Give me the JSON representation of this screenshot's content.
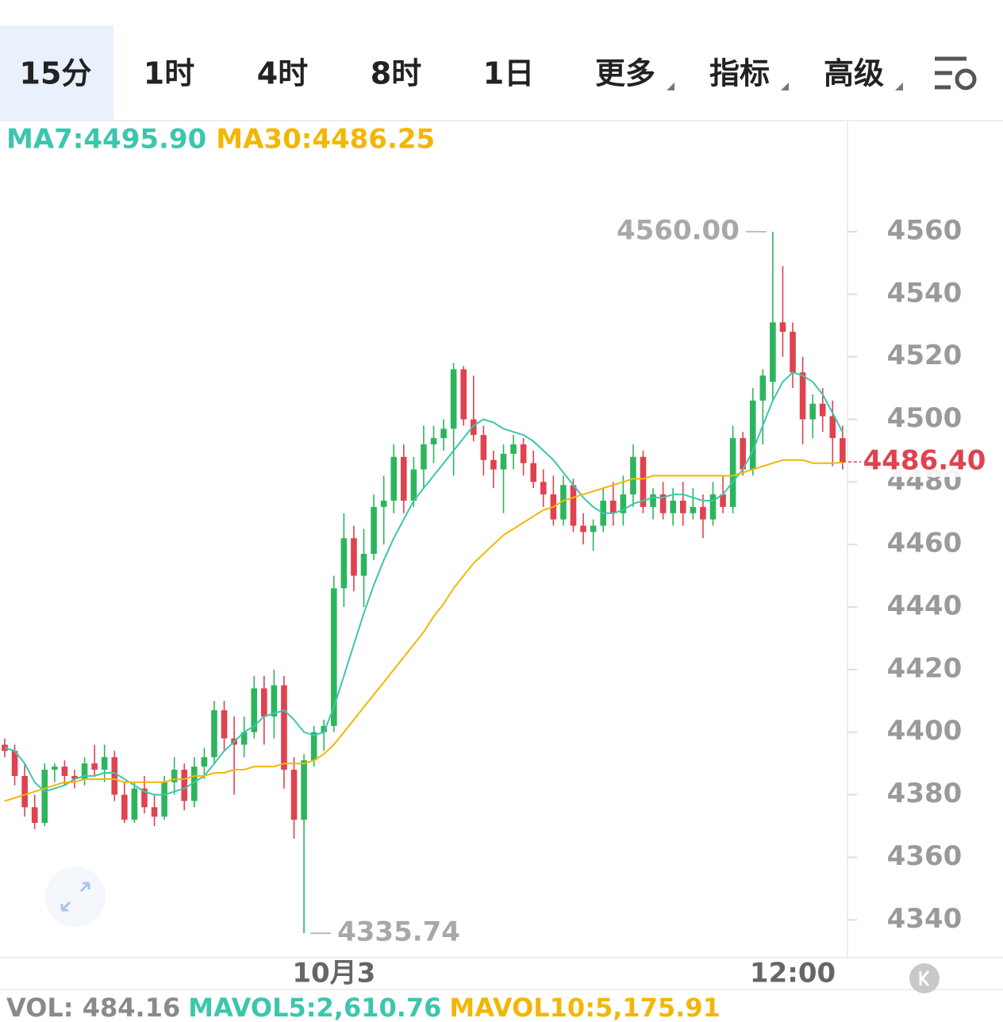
{
  "tabs": [
    "15分",
    "1时",
    "4时",
    "8时",
    "1日",
    "更多",
    "指标",
    "高级"
  ],
  "active_tab": 0,
  "chart_data": {
    "type": "candlestick",
    "categories": [
      null,
      null,
      null,
      null,
      null,
      null,
      null,
      null,
      null,
      null,
      null,
      null,
      null,
      null,
      null,
      null,
      null,
      null,
      null,
      null,
      null,
      null,
      null,
      null,
      null,
      null,
      null,
      null,
      null,
      null,
      null,
      null,
      null,
      "10月3",
      null,
      null,
      null,
      null,
      null,
      null,
      null,
      null,
      null,
      null,
      null,
      null,
      null,
      null,
      null,
      null,
      null,
      null,
      null,
      null,
      null,
      null,
      null,
      null,
      null,
      null,
      null,
      null,
      null,
      null,
      null,
      null,
      null,
      null,
      null,
      null,
      null,
      null,
      null,
      null,
      null,
      null,
      null,
      null,
      null,
      "12:00",
      null,
      null,
      null,
      null,
      null
    ],
    "open": [
      4396,
      4394,
      4386,
      4376,
      4371,
      4388,
      4389,
      4386,
      4385,
      4390,
      4388,
      4392,
      4380,
      4372,
      4382,
      4376,
      4373,
      4384,
      4388,
      4378,
      4389,
      4392,
      4407,
      4398,
      4396,
      4400,
      4414,
      4405,
      4415,
      4388,
      4372,
      4391,
      4400,
      4402,
      4446,
      4462,
      4450,
      4457,
      4472,
      4474,
      4488,
      4474,
      4484,
      4492,
      4494,
      4497,
      4516,
      4500,
      4495,
      4487,
      4484,
      4489,
      4492,
      4486,
      4480,
      4476,
      4468,
      4479,
      4466,
      4464,
      4466,
      4474,
      4470,
      4476,
      4488,
      4472,
      4476,
      4470,
      4474,
      4470,
      4472,
      4468,
      4476,
      4472,
      4494,
      4484,
      4506,
      4512,
      4531,
      4528,
      4515,
      4500,
      4505,
      4501,
      4494
    ],
    "high": [
      4398,
      4396,
      4390,
      4380,
      4390,
      4390,
      4391,
      4388,
      4392,
      4396,
      4396,
      4394,
      4384,
      4384,
      4386,
      4380,
      4386,
      4392,
      4390,
      4392,
      4395,
      4410,
      4410,
      4405,
      4405,
      4418,
      4418,
      4420,
      4418,
      4392,
      4393,
      4402,
      4404,
      4450,
      4470,
      4466,
      4465,
      4476,
      4482,
      4492,
      4492,
      4488,
      4498,
      4498,
      4500,
      4518,
      4517,
      4514,
      4498,
      4490,
      4492,
      4495,
      4494,
      4490,
      4484,
      4482,
      4482,
      4481,
      4470,
      4468,
      4478,
      4480,
      4482,
      4492,
      4490,
      4478,
      4480,
      4478,
      4480,
      4478,
      4476,
      4480,
      4482,
      4498,
      4496,
      4510,
      4516,
      4560,
      4549,
      4531,
      4520,
      4508,
      4510,
      4506,
      4498
    ],
    "low": [
      4392,
      4383,
      4373,
      4369,
      4370,
      4384,
      4383,
      4382,
      4383,
      4386,
      4384,
      4378,
      4371,
      4371,
      4374,
      4370,
      4372,
      4380,
      4375,
      4376,
      4385,
      4390,
      4394,
      4380,
      4392,
      4398,
      4396,
      4398,
      4382,
      4366,
      4335.74,
      4389,
      4394,
      4400,
      4440,
      4445,
      4440,
      4455,
      4460,
      4470,
      4470,
      4472,
      4478,
      4486,
      4490,
      4482,
      4498,
      4493,
      4482,
      4478,
      4470,
      4484,
      4482,
      4478,
      4472,
      4466,
      4466,
      4464,
      4460,
      4458,
      4464,
      4466,
      4466,
      4472,
      4470,
      4468,
      4468,
      4466,
      4466,
      4468,
      4462,
      4466,
      4470,
      4470,
      4482,
      4482,
      4492,
      4506,
      4520,
      4510,
      4492,
      4494,
      4496,
      4485,
      4484
    ],
    "close": [
      4394,
      4386,
      4376,
      4371,
      4388,
      4389,
      4386,
      4385,
      4390,
      4388,
      4392,
      4380,
      4372,
      4382,
      4376,
      4373,
      4384,
      4388,
      4378,
      4389,
      4392,
      4407,
      4398,
      4396,
      4400,
      4414,
      4405,
      4415,
      4388,
      4372,
      4391,
      4400,
      4402,
      4446,
      4462,
      4450,
      4457,
      4472,
      4474,
      4488,
      4474,
      4484,
      4492,
      4494,
      4497,
      4516,
      4500,
      4495,
      4487,
      4484,
      4489,
      4492,
      4486,
      4480,
      4476,
      4468,
      4479,
      4466,
      4464,
      4466,
      4474,
      4470,
      4476,
      4488,
      4472,
      4476,
      4470,
      4474,
      4470,
      4472,
      4468,
      4476,
      4472,
      4494,
      4484,
      4506,
      4514,
      4531,
      4528,
      4515,
      4500,
      4505,
      4501,
      4494,
      4486.4
    ],
    "up_color": "#2db55d",
    "down_color": "#e0424f",
    "series": [
      {
        "name": "MA7:4495.90",
        "color": "#3cc6ad",
        "values": [
          4395,
          4394,
          4390,
          4384,
          4381,
          4382,
          4383,
          4385,
          4386,
          4386,
          4387,
          4387,
          4385,
          4383,
          4381,
          4380,
          4380,
          4381,
          4382,
          4384,
          4386,
          4390,
          4394,
          4397,
          4400,
          4402,
          4405,
          4406,
          4407,
          4404,
          4400,
          4399,
          4400,
          4408,
          4418,
          4428,
          4438,
          4447,
          4455,
          4462,
          4468,
          4474,
          4478,
          4482,
          4486,
          4490,
          4494,
          4498,
          4500,
          4499,
          4497,
          4496,
          4495,
          4493,
          4490,
          4487,
          4483,
          4479,
          4475,
          4472,
          4470,
          4470,
          4471,
          4473,
          4474,
          4475,
          4475,
          4476,
          4476,
          4475,
          4474,
          4474,
          4476,
          4480,
          4484,
          4490,
          4498,
          4506,
          4512,
          4515,
          4514,
          4512,
          4508,
          4502,
          4495.9
        ]
      },
      {
        "name": "MA30:4486.25",
        "color": "#f2b705",
        "values": [
          4378,
          4379,
          4380,
          4381,
          4382,
          4383,
          4384,
          4384,
          4385,
          4385,
          4385,
          4385,
          4384,
          4384,
          4384,
          4384,
          4384,
          4385,
          4385,
          4386,
          4386,
          4387,
          4387,
          4388,
          4388,
          4389,
          4389,
          4389,
          4390,
          4390,
          4390,
          4391,
          4393,
          4396,
          4400,
          4404,
          4408,
          4412,
          4416,
          4420,
          4424,
          4428,
          4432,
          4437,
          4441,
          4446,
          4450,
          4454,
          4457,
          4460,
          4463,
          4465,
          4467,
          4469,
          4471,
          4472,
          4474,
          4475,
          4476,
          4477,
          4478,
          4479,
          4480,
          4481,
          4481,
          4482,
          4482,
          4482,
          4482,
          4482,
          4482,
          4482,
          4482,
          4482,
          4483,
          4484,
          4485,
          4486,
          4487,
          4487,
          4487,
          4486,
          4486,
          4486,
          4486.25
        ]
      }
    ],
    "ylim": [
      4328.4,
      4595.5
    ],
    "yticks": [
      4340,
      4360,
      4380,
      4400,
      4420,
      4440,
      4460,
      4480,
      4500,
      4520,
      4540,
      4560
    ],
    "annotations": {
      "max": "4560.00",
      "min": "4335.74",
      "last": "4486.40"
    },
    "indicators": [
      {
        "text": "VOL: 484.16",
        "color": "#8a8a8a"
      },
      {
        "text": "MAVOL5:2,610.76",
        "color": "#3cc6ad"
      },
      {
        "text": "MAVOL10:5,175.91",
        "color": "#f2b705"
      }
    ]
  }
}
